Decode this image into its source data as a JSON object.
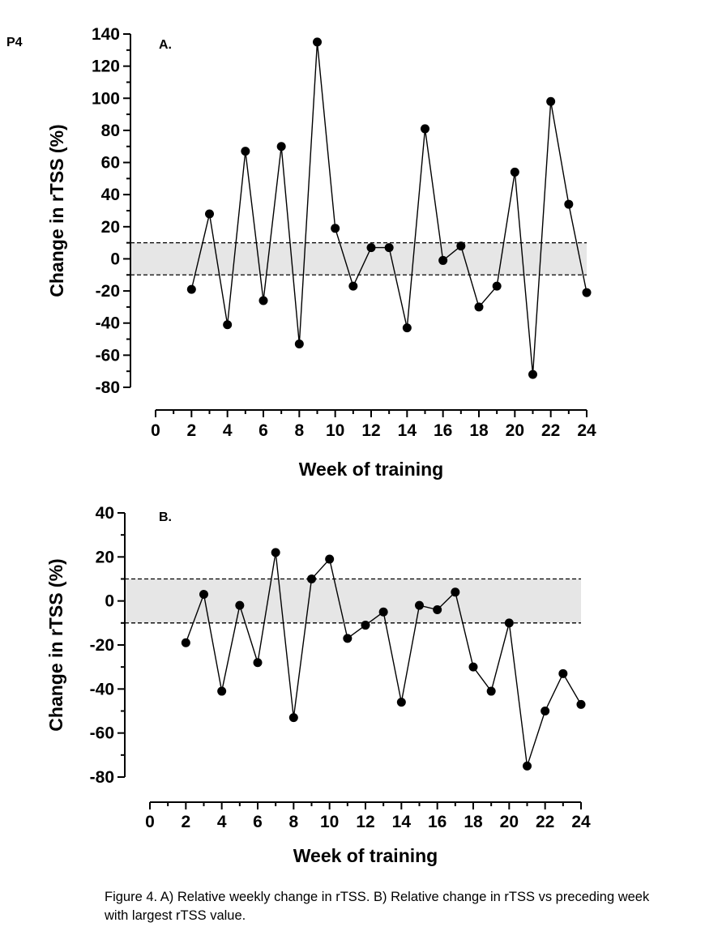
{
  "page_label": "P4",
  "caption": "Figure 4. A) Relative weekly change in rTSS. B) Relative change in rTSS vs preceding week with largest rTSS value.",
  "colors": {
    "band": "#e6e6e6",
    "line": "#000000",
    "marker": "#000000"
  },
  "chart_data": [
    {
      "type": "line",
      "panel_label": "A.",
      "xlabel": "Week of training",
      "ylabel": "Change in rTSS (%)",
      "xlim": [
        0,
        24
      ],
      "ylim": [
        -80,
        140
      ],
      "xticks": [
        "0",
        "2",
        "4",
        "6",
        "8",
        "10",
        "12",
        "14",
        "16",
        "18",
        "20",
        "22",
        "24"
      ],
      "yticks": [
        "140",
        "120",
        "100",
        "80",
        "60",
        "40",
        "20",
        "0",
        "-20",
        "-40",
        "-60",
        "-80"
      ],
      "band": [
        -10,
        10
      ],
      "x": [
        2,
        3,
        4,
        5,
        6,
        7,
        8,
        9,
        10,
        11,
        12,
        13,
        14,
        15,
        16,
        17,
        18,
        19,
        20,
        21,
        22,
        23,
        24
      ],
      "values": [
        -19,
        28,
        -41,
        67,
        -26,
        70,
        -53,
        135,
        19,
        -17,
        7,
        7,
        -43,
        81,
        -1,
        8,
        -30,
        -17,
        54,
        -72,
        98,
        34,
        -21
      ]
    },
    {
      "type": "line",
      "panel_label": "B.",
      "xlabel": "Week of training",
      "ylabel": "Change in rTSS (%)",
      "xlim": [
        0,
        24
      ],
      "ylim": [
        -80,
        40
      ],
      "xticks": [
        "0",
        "2",
        "4",
        "6",
        "8",
        "10",
        "12",
        "14",
        "16",
        "18",
        "20",
        "22",
        "24"
      ],
      "yticks": [
        "40",
        "20",
        "0",
        "-20",
        "-40",
        "-60",
        "-80"
      ],
      "band": [
        -10,
        10
      ],
      "x": [
        2,
        3,
        4,
        5,
        6,
        7,
        8,
        9,
        10,
        11,
        12,
        13,
        14,
        15,
        16,
        17,
        18,
        19,
        20,
        21,
        22,
        23,
        24
      ],
      "values": [
        -19,
        3,
        -41,
        -2,
        -28,
        22,
        -53,
        10,
        19,
        -17,
        -11,
        -5,
        -46,
        -2,
        -4,
        4,
        -30,
        -41,
        -10,
        -75,
        -50,
        -33,
        -47
      ]
    }
  ]
}
